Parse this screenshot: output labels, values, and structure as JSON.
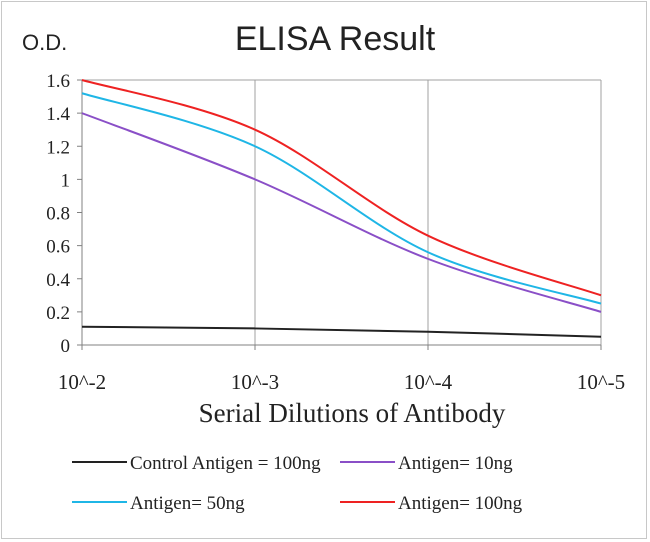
{
  "chart_data": {
    "type": "line",
    "title": "ELISA Result",
    "ylabel": "O.D.",
    "xlabel": "Serial  Dilutions  of Antibody",
    "x_scale": "log",
    "x": [
      0.01,
      0.001,
      0.0001,
      1e-05
    ],
    "x_tick_labels": [
      "10^-2",
      "10^-3",
      "10^-4",
      "10^-5"
    ],
    "ylim": [
      0,
      1.6
    ],
    "y_ticks": [
      0,
      0.2,
      0.4,
      0.6,
      0.8,
      1,
      1.2,
      1.4,
      1.6
    ],
    "y_tick_labels": [
      "0",
      "0.2",
      "0.4",
      "0.6",
      "0.8",
      "1",
      "1.2",
      "1.4",
      "1.6"
    ],
    "grid": "vertical",
    "legend_position": "bottom",
    "series": [
      {
        "name": "Control Antigen = 100ng",
        "color": "#222222",
        "values": [
          0.11,
          0.1,
          0.08,
          0.05
        ]
      },
      {
        "name": "Antigen= 10ng",
        "color": "#8a4fc7",
        "values": [
          1.4,
          1.0,
          0.52,
          0.2
        ]
      },
      {
        "name": "Antigen= 50ng",
        "color": "#1fb6e6",
        "values": [
          1.52,
          1.2,
          0.56,
          0.25
        ]
      },
      {
        "name": "Antigen= 100ng",
        "color": "#ee2222",
        "values": [
          1.6,
          1.3,
          0.66,
          0.3
        ]
      }
    ]
  }
}
